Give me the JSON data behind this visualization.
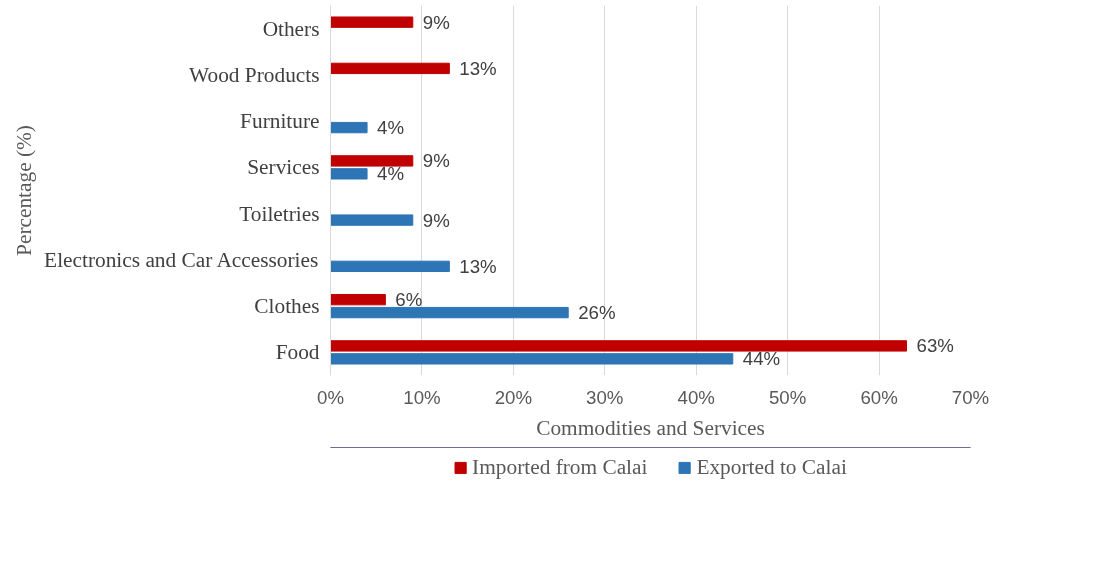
{
  "chart_data": {
    "type": "bar",
    "orientation": "horizontal",
    "xlabel": "Commodities and Services",
    "ylabel": "Percentage (%)",
    "categories": [
      "Others",
      "Wood Products",
      "Furniture",
      "Services",
      "Toiletries",
      "Electronics and Car Accessories",
      "Clothes",
      "Food"
    ],
    "series": [
      {
        "name": "Imported from Calai",
        "color": "#c00000",
        "values": [
          9,
          13,
          null,
          9,
          null,
          null,
          6,
          63
        ],
        "value_labels": [
          "9%",
          "13%",
          null,
          "9%",
          null,
          null,
          "6%",
          "63%"
        ]
      },
      {
        "name": "Exported to Calai",
        "color": "#2e75b6",
        "values": [
          null,
          null,
          4,
          4,
          9,
          13,
          26,
          44
        ],
        "value_labels": [
          null,
          null,
          "4%",
          "4%",
          "9%",
          "13%",
          "26%",
          "44%"
        ]
      }
    ],
    "xlim": [
      0,
      70
    ],
    "xticks": [
      {
        "value": 0,
        "label": "0%"
      },
      {
        "value": 10,
        "label": "10%"
      },
      {
        "value": 20,
        "label": "20%"
      },
      {
        "value": 30,
        "label": "30%"
      },
      {
        "value": 40,
        "label": "40%"
      },
      {
        "value": 50,
        "label": "50%"
      },
      {
        "value": 60,
        "label": "60%"
      },
      {
        "value": 70,
        "label": "70%"
      }
    ],
    "grid": "x",
    "legend": "bottom"
  }
}
